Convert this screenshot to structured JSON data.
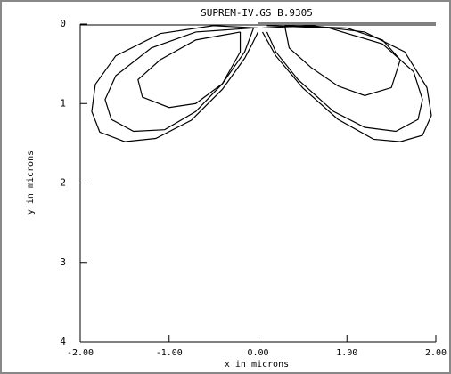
{
  "chart_data": {
    "type": "line",
    "title": "SUPREM-IV.GS B.9305",
    "x_label": "x in microns",
    "y_label": "y in microns",
    "xlim": [
      -2,
      2
    ],
    "ylim": [
      0,
      4
    ],
    "y_inverted": true,
    "xticks": [
      {
        "value": -2,
        "label": "-2.00"
      },
      {
        "value": -1,
        "label": "-1.00"
      },
      {
        "value": 0,
        "label": "0.00"
      },
      {
        "value": 1,
        "label": "1.00"
      },
      {
        "value": 2,
        "label": "2.00"
      }
    ],
    "yticks": [
      0,
      1,
      2,
      3,
      4
    ],
    "series": [
      {
        "color": "#000000",
        "x": [
          0,
          -0.5,
          -1.1,
          -1.6,
          -1.83,
          -1.87,
          -1.78,
          -1.5,
          -1.15,
          -0.75,
          -0.4,
          -0.15,
          -0.07,
          0
        ],
        "values": [
          0.05,
          0.02,
          0.12,
          0.4,
          0.76,
          1.1,
          1.36,
          1.48,
          1.44,
          1.21,
          0.82,
          0.43,
          0.26,
          0.1
        ]
      },
      {
        "color": "#000000",
        "x": [
          -0.05,
          -0.7,
          -1.2,
          -1.6,
          -1.72,
          -1.65,
          -1.4,
          -1.05,
          -0.7,
          -0.4,
          -0.15,
          -0.05
        ],
        "values": [
          0.05,
          0.1,
          0.3,
          0.65,
          0.95,
          1.2,
          1.35,
          1.33,
          1.1,
          0.75,
          0.35,
          0.05
        ]
      },
      {
        "color": "#000000",
        "x": [
          -0.2,
          -0.7,
          -1.1,
          -1.35,
          -1.3,
          -1.0,
          -0.7,
          -0.4,
          -0.2,
          -0.2
        ],
        "values": [
          0.1,
          0.2,
          0.45,
          0.7,
          0.92,
          1.05,
          1.0,
          0.75,
          0.35,
          0.1
        ]
      },
      {
        "color": "#000000",
        "x": [
          0.05,
          0.6,
          1.2,
          1.65,
          1.9,
          1.95,
          1.85,
          1.6,
          1.3,
          0.9,
          0.5,
          0.2,
          0.05
        ],
        "values": [
          0.05,
          0.02,
          0.1,
          0.35,
          0.8,
          1.15,
          1.4,
          1.48,
          1.45,
          1.2,
          0.8,
          0.4,
          0.1
        ]
      },
      {
        "color": "#000000",
        "x": [
          0.1,
          0.8,
          1.4,
          1.75,
          1.85,
          1.8,
          1.55,
          1.2,
          0.85,
          0.45,
          0.2,
          0.1
        ],
        "values": [
          0.02,
          0.05,
          0.25,
          0.6,
          0.95,
          1.2,
          1.35,
          1.3,
          1.1,
          0.7,
          0.35,
          0.1
        ]
      },
      {
        "color": "#000000",
        "x": [
          0.3,
          1.0,
          1.4,
          1.6,
          1.5,
          1.2,
          0.9,
          0.6,
          0.35,
          0.3
        ],
        "values": [
          0.02,
          0.05,
          0.2,
          0.45,
          0.8,
          0.9,
          0.78,
          0.55,
          0.3,
          0.02
        ]
      }
    ]
  }
}
